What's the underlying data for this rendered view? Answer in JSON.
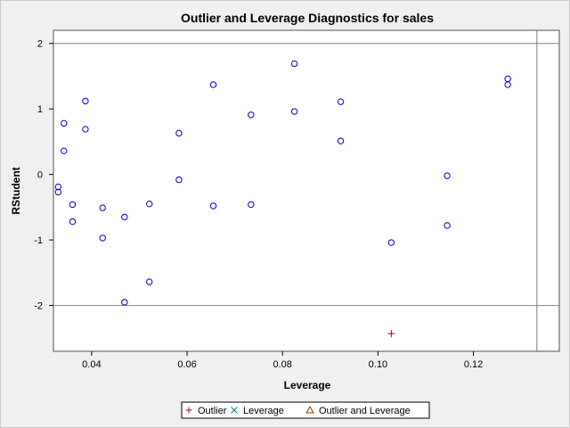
{
  "chart_data": {
    "type": "scatter",
    "title": "Outlier and Leverage Diagnostics for sales",
    "xlabel": "Leverage",
    "ylabel": "RStudent",
    "xlim": [
      0.032,
      0.138
    ],
    "ylim": [
      -2.7,
      2.2
    ],
    "xticks": [
      0.04,
      0.06,
      0.08,
      0.1,
      0.12
    ],
    "xtick_labels": [
      "0.04",
      "0.06",
      "0.08",
      "0.10",
      "0.12"
    ],
    "yticks": [
      -2,
      -1,
      0,
      1,
      2
    ],
    "ytick_labels": [
      "-2",
      "-1",
      "0",
      "1",
      "2"
    ],
    "reference_lines": {
      "y": [
        -2,
        2
      ],
      "x": [
        0.1333
      ]
    },
    "grid": false,
    "legend_position": "bottom",
    "series": [
      {
        "marker": "circle",
        "color": "#0000cc",
        "points": [
          [
            0.033,
            -0.19
          ],
          [
            0.033,
            -0.27
          ],
          [
            0.0342,
            0.78
          ],
          [
            0.0342,
            0.36
          ],
          [
            0.036,
            -0.46
          ],
          [
            0.036,
            -0.72
          ],
          [
            0.0387,
            1.12
          ],
          [
            0.0387,
            0.69
          ],
          [
            0.0423,
            -0.51
          ],
          [
            0.0423,
            -0.97
          ],
          [
            0.0469,
            -0.65
          ],
          [
            0.0469,
            -1.95
          ],
          [
            0.0521,
            -0.45
          ],
          [
            0.0521,
            -1.64
          ],
          [
            0.0583,
            0.63
          ],
          [
            0.0583,
            -0.08
          ],
          [
            0.0655,
            1.37
          ],
          [
            0.0655,
            -0.48
          ],
          [
            0.0734,
            0.91
          ],
          [
            0.0734,
            -0.46
          ],
          [
            0.0825,
            1.69
          ],
          [
            0.0825,
            0.96
          ],
          [
            0.0922,
            1.11
          ],
          [
            0.0922,
            0.51
          ],
          [
            0.1028,
            -1.04
          ],
          [
            0.1145,
            -0.02
          ],
          [
            0.1145,
            -0.78
          ],
          [
            0.1272,
            1.46
          ],
          [
            0.1272,
            1.37
          ]
        ]
      },
      {
        "name": "Outlier",
        "marker": "plus",
        "color": "#aa0033",
        "points": [
          [
            0.1028,
            -2.43
          ]
        ]
      }
    ],
    "legend": [
      {
        "label": "Outlier",
        "symbol": "+",
        "color": "#aa0033"
      },
      {
        "label": "Leverage",
        "symbol": "×",
        "color": "#007f7f"
      },
      {
        "label": "Outlier and Leverage",
        "symbol": "△",
        "color": "#7f3f00"
      }
    ]
  }
}
